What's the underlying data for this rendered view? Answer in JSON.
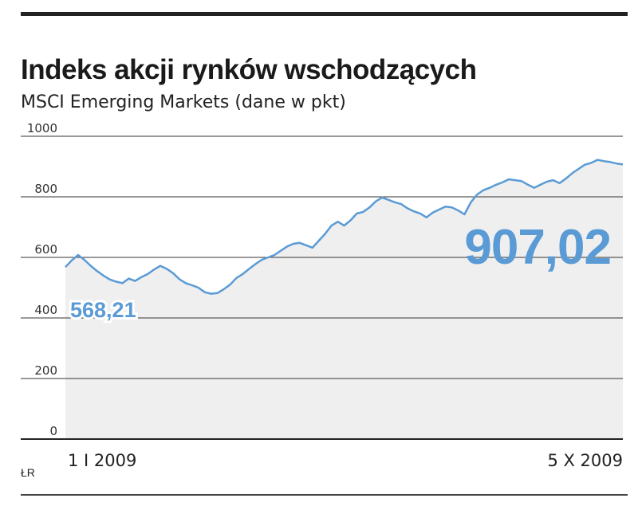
{
  "title": "Indeks akcji rynków wschodzących",
  "subtitle": "MSCI Emerging Markets (dane w pkt)",
  "credit": "ŁR",
  "colors": {
    "line": "#5b9bd5",
    "area": "#efefef",
    "grid": "#333333",
    "label": "#5b9bd5"
  },
  "chart_data": {
    "type": "line",
    "title": "Indeks akcji rynków wschodzących",
    "subtitle": "MSCI Emerging Markets (dane w pkt)",
    "xlabel": "",
    "ylabel": "",
    "ylim": [
      0,
      1000
    ],
    "yticks": [
      0,
      200,
      400,
      600,
      800,
      1000
    ],
    "x_tick_labels": [
      "1 I 2009",
      "5 X 2009"
    ],
    "grid": true,
    "annotations": [
      {
        "text": "568,21",
        "value": 568.21,
        "at": "start"
      },
      {
        "text": "907,02",
        "value": 907.02,
        "at": "end"
      }
    ],
    "series": [
      {
        "values": [
          568,
          590,
          608,
          592,
          572,
          555,
          540,
          527,
          520,
          515,
          530,
          522,
          535,
          545,
          560,
          572,
          562,
          548,
          528,
          515,
          508,
          500,
          485,
          480,
          482,
          495,
          510,
          532,
          545,
          562,
          578,
          592,
          600,
          608,
          622,
          636,
          645,
          648,
          640,
          632,
          655,
          678,
          705,
          718,
          705,
          722,
          745,
          750,
          765,
          785,
          798,
          790,
          782,
          776,
          762,
          752,
          745,
          732,
          748,
          758,
          768,
          765,
          755,
          742,
          782,
          808,
          822,
          830,
          840,
          848,
          858,
          855,
          852,
          840,
          830,
          840,
          850,
          855,
          845,
          860,
          878,
          892,
          906,
          912,
          922,
          918,
          915,
          910,
          907
        ]
      }
    ]
  }
}
